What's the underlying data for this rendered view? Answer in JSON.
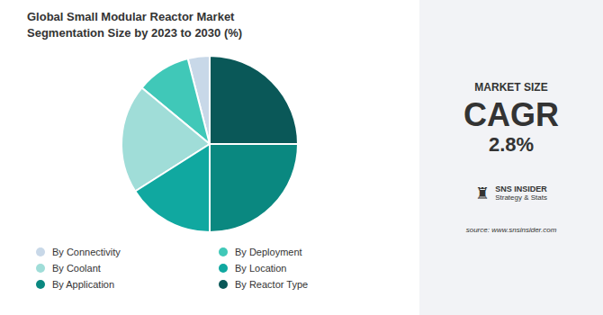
{
  "chart_data": {
    "type": "pie",
    "title": "Global Small Modular Reactor Market\nSegmentation Size by 2023 to 2030 (%)",
    "categories": [
      "By Connectivity",
      "By Deployment",
      "By Coolant",
      "By Location",
      "By Application",
      "By Reactor Type"
    ],
    "values": [
      4,
      10,
      20,
      16,
      25,
      25
    ],
    "colors": [
      "#c8d8e8",
      "#40c8b8",
      "#a0ddd8",
      "#10a8a0",
      "#0a8880",
      "#0a5858"
    ],
    "legend": "bottom",
    "annotations": [
      "MARKET SIZE",
      "CAGR",
      "2.8%",
      "♜",
      "SNS INSIDER",
      "Strategy & Stats",
      "source: www.snsinsider.com"
    ]
  }
}
